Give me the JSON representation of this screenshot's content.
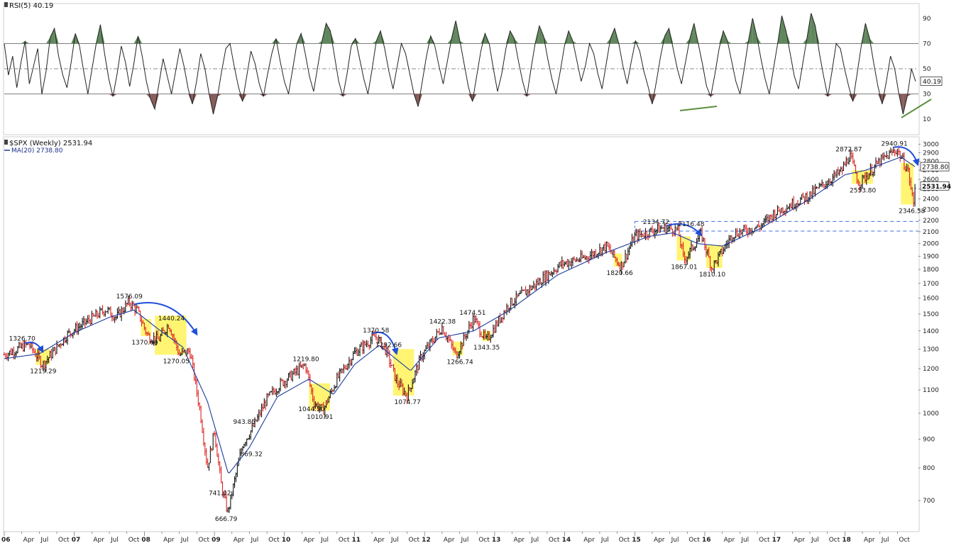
{
  "chart_data": [
    {
      "type": "line",
      "title": "RSI(5) 40.19",
      "y_ticks": [
        10,
        30,
        50,
        70,
        90
      ],
      "ylim": [
        0,
        100
      ],
      "reference_lines": [
        30,
        50,
        70
      ],
      "last_value": "40.19",
      "series": [
        {
          "values": [
            70,
            45,
            60,
            35,
            55,
            72,
            38,
            52,
            66,
            30,
            48,
            75,
            82,
            60,
            45,
            35,
            55,
            78,
            68,
            48,
            30,
            50,
            70,
            85,
            62,
            42,
            28,
            46,
            68,
            55,
            36,
            54,
            76,
            60,
            40,
            26,
            18,
            38,
            58,
            44,
            30,
            48,
            66,
            52,
            34,
            22,
            40,
            62,
            50,
            30,
            14,
            28,
            48,
            66,
            70,
            52,
            36,
            24,
            44,
            64,
            54,
            38,
            28,
            46,
            62,
            74,
            56,
            40,
            30,
            50,
            70,
            78,
            62,
            44,
            32,
            52,
            72,
            86,
            80,
            60,
            40,
            28,
            46,
            68,
            74,
            58,
            42,
            30,
            50,
            72,
            80,
            66,
            48,
            34,
            52,
            70,
            62,
            46,
            30,
            20,
            40,
            60,
            76,
            68,
            52,
            38,
            56,
            74,
            88,
            72,
            54,
            36,
            24,
            44,
            64,
            78,
            70,
            50,
            32,
            46,
            66,
            80,
            74,
            56,
            40,
            28,
            50,
            70,
            84,
            76,
            58,
            42,
            30,
            48,
            68,
            80,
            72,
            56,
            40,
            52,
            70,
            62,
            46,
            34,
            54,
            74,
            82,
            70,
            52,
            38,
            56,
            72,
            64,
            48,
            36,
            22,
            40,
            60,
            76,
            82,
            66,
            50,
            38,
            56,
            74,
            86,
            70,
            54,
            36,
            28,
            46,
            66,
            80,
            72,
            56,
            40,
            30,
            50,
            72,
            90,
            76,
            58,
            42,
            30,
            50,
            70,
            92,
            80,
            62,
            44,
            34,
            54,
            74,
            94,
            84,
            62,
            44,
            28,
            48,
            70,
            66,
            50,
            36,
            24,
            46,
            68,
            86,
            74,
            54,
            36,
            22,
            40,
            60,
            50,
            30,
            14,
            28,
            50,
            40
          ]
        }
      ],
      "green_trendlines": 2
    },
    {
      "type": "line",
      "title": "$SPX (Weekly) 2531.94",
      "legend": [
        "MA(20) 2738.80"
      ],
      "yscale": "log",
      "ylim": [
        620,
        3050
      ],
      "y_ticks": [
        700,
        800,
        900,
        1000,
        1100,
        1200,
        1300,
        1400,
        1500,
        1600,
        1700,
        1800,
        1900,
        2000,
        2100,
        2200,
        2300,
        2400,
        2500,
        2600,
        2700,
        2800,
        2900,
        3000
      ],
      "x_ticks": [
        "06",
        "Apr",
        "Jul",
        "Oct",
        "07",
        "Apr",
        "Jul",
        "Oct",
        "08",
        "Apr",
        "Jul",
        "Oct",
        "09",
        "Apr",
        "Jul",
        "Oct",
        "10",
        "Apr",
        "Jul",
        "Oct",
        "11",
        "Apr",
        "Jul",
        "Oct",
        "12",
        "Apr",
        "Jul",
        "Oct",
        "13",
        "Apr",
        "Jul",
        "Oct",
        "14",
        "Apr",
        "Jul",
        "Oct",
        "15",
        "Apr",
        "Jul",
        "Oct",
        "16",
        "Apr",
        "Jul",
        "Oct",
        "17",
        "Apr",
        "Jul",
        "Oct",
        "18",
        "Apr",
        "Jul",
        "Oct"
      ],
      "price_path": [
        [
          2006.0,
          1270
        ],
        [
          2006.35,
          1326.7
        ],
        [
          2006.55,
          1219.29
        ],
        [
          2006.9,
          1380
        ],
        [
          2007.2,
          1460
        ],
        [
          2007.45,
          1530
        ],
        [
          2007.6,
          1480
        ],
        [
          2007.78,
          1576.09
        ],
        [
          2007.9,
          1520
        ],
        [
          2008.05,
          1370.6
        ],
        [
          2008.2,
          1350
        ],
        [
          2008.35,
          1440.24
        ],
        [
          2008.5,
          1270.05
        ],
        [
          2008.65,
          1290
        ],
        [
          2008.8,
          1000
        ],
        [
          2008.9,
          800
        ],
        [
          2009.0,
          930
        ],
        [
          2009.1,
          741.02
        ],
        [
          2009.19,
          666.79
        ],
        [
          2009.4,
          880
        ],
        [
          2009.55,
          943.85
        ],
        [
          2009.75,
          1060
        ],
        [
          2009.95,
          1130
        ],
        [
          2010.3,
          1219.8
        ],
        [
          2010.42,
          1044.5
        ],
        [
          2010.55,
          1010.91
        ],
        [
          2010.75,
          1150
        ],
        [
          2011.0,
          1280
        ],
        [
          2011.3,
          1370.58
        ],
        [
          2011.45,
          1292.66
        ],
        [
          2011.6,
          1140
        ],
        [
          2011.75,
          1074.77
        ],
        [
          2011.95,
          1260
        ],
        [
          2012.25,
          1422.38
        ],
        [
          2012.45,
          1266.74
        ],
        [
          2012.7,
          1474.51
        ],
        [
          2012.88,
          1343.35
        ],
        [
          2013.2,
          1560
        ],
        [
          2013.6,
          1700
        ],
        [
          2013.95,
          1840
        ],
        [
          2014.3,
          1890
        ],
        [
          2014.6,
          1980
        ],
        [
          2014.8,
          1820.66
        ],
        [
          2015.0,
          2060
        ],
        [
          2015.4,
          2134.72
        ],
        [
          2015.62,
          2116.48
        ],
        [
          2015.7,
          1867.01
        ],
        [
          2015.95,
          2080
        ],
        [
          2016.1,
          1810.1
        ],
        [
          2016.4,
          2080
        ],
        [
          2016.8,
          2150
        ],
        [
          2017.0,
          2270
        ],
        [
          2017.5,
          2440
        ],
        [
          2017.95,
          2690
        ],
        [
          2018.07,
          2872.87
        ],
        [
          2018.2,
          2553.8
        ],
        [
          2018.5,
          2800
        ],
        [
          2018.74,
          2940.91
        ],
        [
          2018.9,
          2700
        ],
        [
          2018.98,
          2346.58
        ],
        [
          2019.0,
          2531.94
        ]
      ],
      "ma20_path": [
        [
          2006.0,
          1250
        ],
        [
          2006.5,
          1275
        ],
        [
          2007.0,
          1390
        ],
        [
          2007.5,
          1480
        ],
        [
          2007.85,
          1525
        ],
        [
          2008.2,
          1410
        ],
        [
          2008.55,
          1310
        ],
        [
          2008.9,
          1050
        ],
        [
          2009.2,
          780
        ],
        [
          2009.5,
          870
        ],
        [
          2009.9,
          1070
        ],
        [
          2010.35,
          1150
        ],
        [
          2010.7,
          1080
        ],
        [
          2011.0,
          1220
        ],
        [
          2011.35,
          1320
        ],
        [
          2011.8,
          1190
        ],
        [
          2012.2,
          1360
        ],
        [
          2012.7,
          1400
        ],
        [
          2013.2,
          1520
        ],
        [
          2013.9,
          1760
        ],
        [
          2014.6,
          1930
        ],
        [
          2015.2,
          2060
        ],
        [
          2015.55,
          2090
        ],
        [
          2015.9,
          2000
        ],
        [
          2016.25,
          1980
        ],
        [
          2016.8,
          2130
        ],
        [
          2017.5,
          2400
        ],
        [
          2018.0,
          2650
        ],
        [
          2018.3,
          2700
        ],
        [
          2018.8,
          2850
        ],
        [
          2019.0,
          2738.8
        ]
      ],
      "annotations": [
        "1326.70",
        "1219.29",
        "1576.09",
        "1370.60",
        "1440.24",
        "1270.05",
        "943.85",
        "741.02",
        "666.79",
        "869.32",
        "1219.80",
        "1044.50",
        "1010.91",
        "1370.58",
        "1292.66",
        "1074.77",
        "1422.38",
        "1266.74",
        "1474.51",
        "1343.35",
        "1820.66",
        "2134.72",
        "2116.48",
        "1867.01",
        "1810.10",
        "2872.87",
        "2553.80",
        "2940.91",
        "2346.58"
      ],
      "price_tags": [
        "2738.80",
        "2531.94"
      ]
    }
  ]
}
